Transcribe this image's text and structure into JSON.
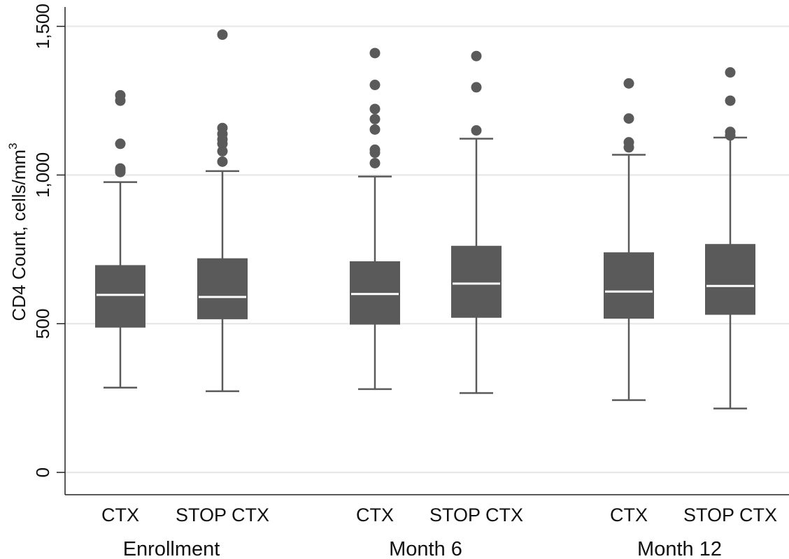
{
  "chart_data": {
    "type": "boxplot",
    "ylabel": "CD4 Count, cells/mm",
    "ylabel_superscript": "3",
    "ylim": [
      -75,
      1565
    ],
    "yticks": [
      0,
      500,
      1000,
      1500
    ],
    "ytick_labels": [
      "0",
      "500",
      "1,000",
      "1,500"
    ],
    "grid": true,
    "colors": {
      "box": "#5a5a5a",
      "median": "#ffffff",
      "grid": "#e6e6e6",
      "axis": "#222222"
    },
    "groups": [
      {
        "label": "Enrollment",
        "boxes": [
          {
            "label": "CTX",
            "whisker_low": 285,
            "q1": 487,
            "median": 597,
            "q3": 697,
            "whisker_high": 976,
            "outliers": [
              1010,
              1017,
              1022,
              1105,
              1250,
              1268
            ]
          },
          {
            "label": "STOP CTX",
            "whisker_low": 273,
            "q1": 515,
            "median": 590,
            "q3": 720,
            "whisker_high": 1013,
            "outliers": [
              1045,
              1080,
              1105,
              1120,
              1138,
              1158,
              1472
            ]
          }
        ]
      },
      {
        "label": "Month 6",
        "boxes": [
          {
            "label": "CTX",
            "whisker_low": 280,
            "q1": 497,
            "median": 600,
            "q3": 710,
            "whisker_high": 995,
            "outliers": [
              1040,
              1075,
              1085,
              1153,
              1188,
              1222,
              1303,
              1410
            ]
          },
          {
            "label": "STOP CTX",
            "whisker_low": 267,
            "q1": 520,
            "median": 635,
            "q3": 762,
            "whisker_high": 1122,
            "outliers": [
              1150,
              1295,
              1400
            ]
          }
        ]
      },
      {
        "label": "Month 12",
        "boxes": [
          {
            "label": "CTX",
            "whisker_low": 243,
            "q1": 517,
            "median": 608,
            "q3": 740,
            "whisker_high": 1068,
            "outliers": [
              1093,
              1110,
              1190,
              1308
            ]
          },
          {
            "label": "STOP CTX",
            "whisker_low": 215,
            "q1": 530,
            "median": 627,
            "q3": 768,
            "whisker_high": 1126,
            "outliers": [
              1133,
              1145,
              1250,
              1345
            ]
          }
        ]
      }
    ]
  }
}
